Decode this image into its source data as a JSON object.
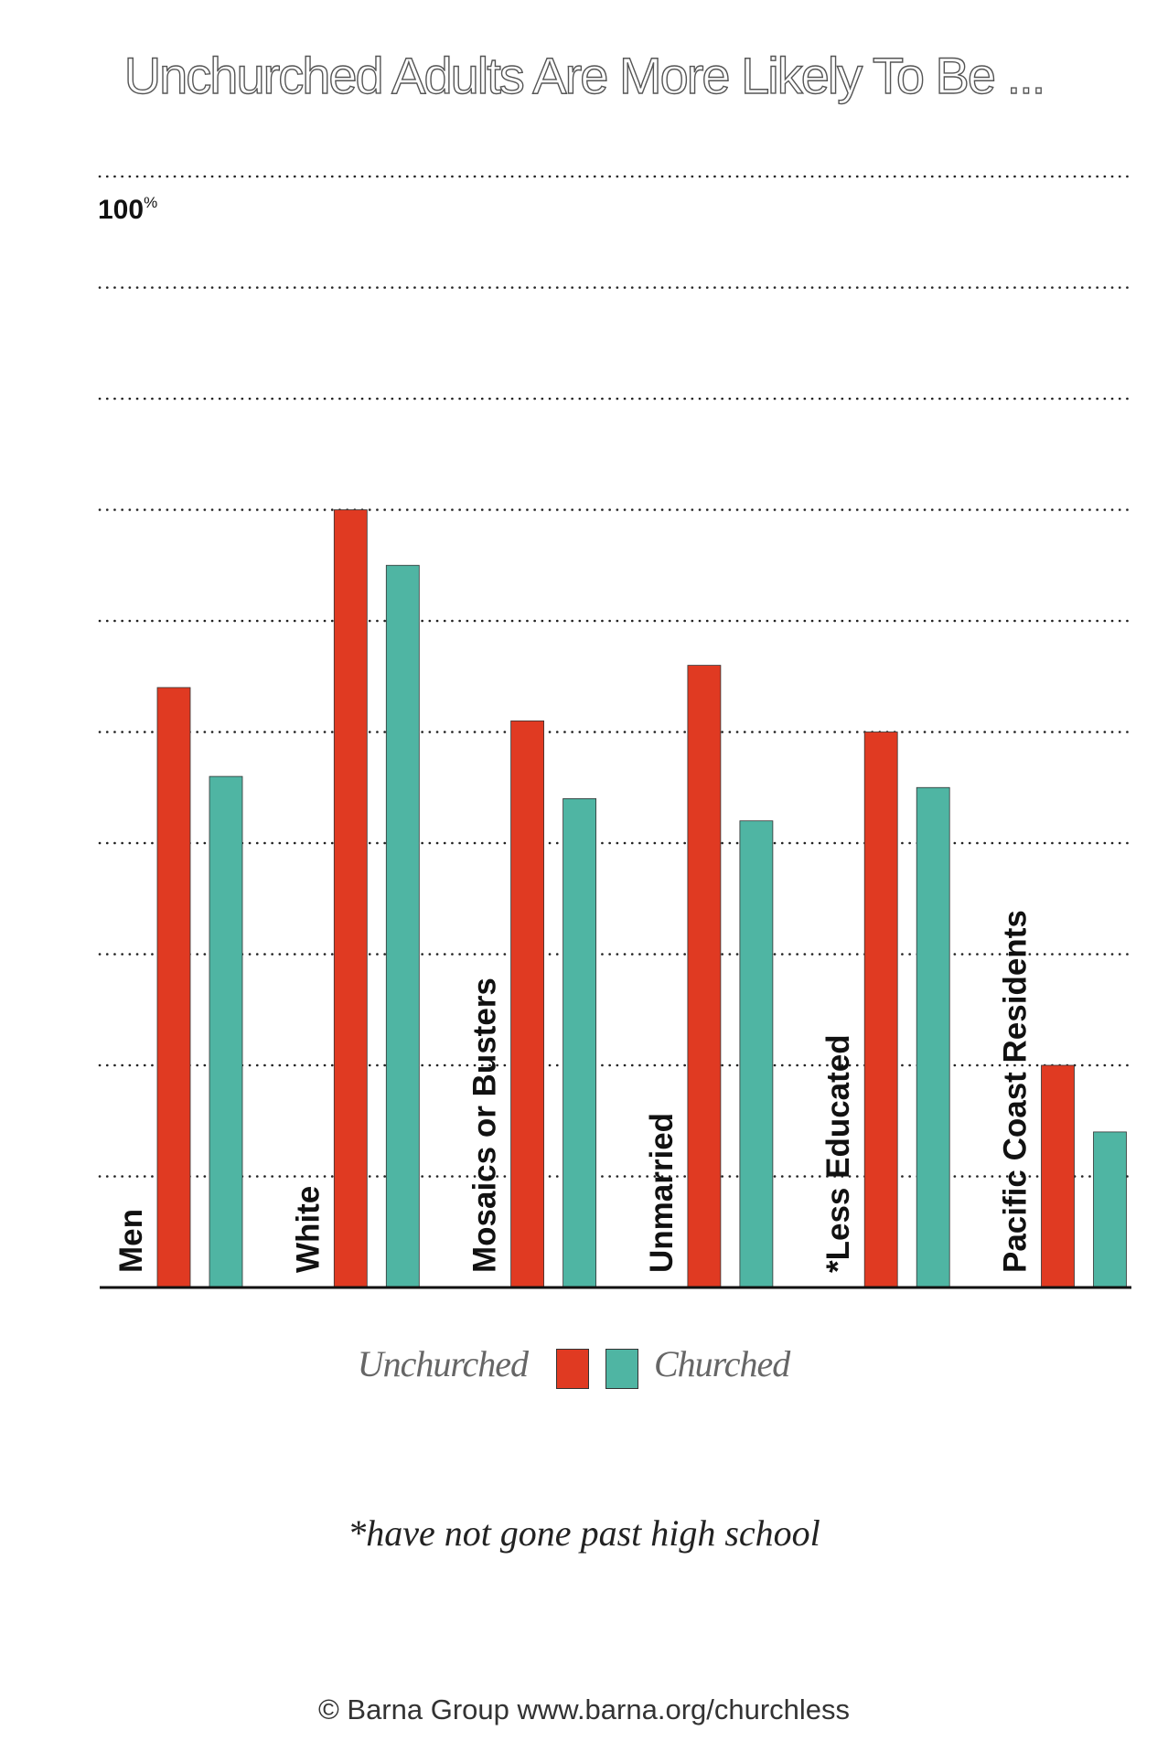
{
  "chart_data": {
    "type": "bar",
    "title": "Unchurched Adults Are More Likely To Be ...",
    "ytick_label": "100",
    "ytick_unit": "%",
    "ylim": [
      0,
      100
    ],
    "grid": true,
    "categories": [
      "Men",
      "White",
      "Mosaics or Busters",
      "Unmarried",
      "*Less Educated",
      "Pacific Coast Residents"
    ],
    "series": [
      {
        "name": "Unchurched",
        "color": "#e03a22",
        "values": [
          54,
          70,
          51,
          56,
          50,
          20
        ]
      },
      {
        "name": "Churched",
        "color": "#4fb5a3",
        "values": [
          46,
          65,
          44,
          42,
          45,
          14
        ]
      }
    ]
  },
  "legend": {
    "left_label": "Unchurched",
    "right_label": "Churched"
  },
  "footnote": "*have not gone past high school",
  "credit": "© Barna Group www.barna.org/churchless"
}
